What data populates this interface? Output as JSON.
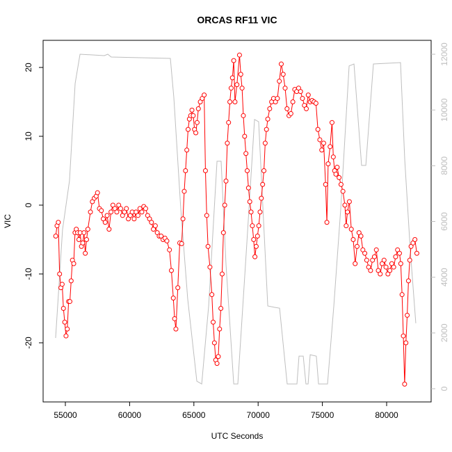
{
  "chart_data": {
    "type": "line",
    "title": "ORCAS RF11 VIC",
    "x_label": "UTC Seconds",
    "y_label": "VIC",
    "xlim": [
      53268,
      83463
    ],
    "xticks": [
      55000,
      60000,
      65000,
      70000,
      75000,
      80000
    ],
    "ylim": [
      -28.59,
      23.94
    ],
    "yticks": [
      -20,
      -10,
      0,
      10,
      20
    ],
    "y2lim": [
      -474,
      12499
    ],
    "y2ticks": [
      0,
      2000,
      4000,
      6000,
      8000,
      10000,
      12000
    ],
    "series": [
      {
        "color": "#ff0000",
        "marker": "circle",
        "axis": "y",
        "x": [
          54250,
          54350,
          54450,
          54550,
          54650,
          54750,
          54850,
          54950,
          55050,
          55150,
          55250,
          55350,
          55450,
          55550,
          55650,
          55750,
          55850,
          55950,
          56050,
          56150,
          56250,
          56350,
          56450,
          56550,
          56650,
          56750,
          56950,
          57100,
          57250,
          57400,
          57500,
          57650,
          57800,
          57950,
          58100,
          58250,
          58400,
          58550,
          58700,
          58850,
          59000,
          59150,
          59300,
          59450,
          59600,
          59750,
          59900,
          60050,
          60200,
          60350,
          60500,
          60650,
          60800,
          60950,
          61100,
          61250,
          61400,
          61550,
          61700,
          61850,
          62000,
          62150,
          62300,
          62450,
          62600,
          62750,
          62900,
          63100,
          63250,
          63400,
          63500,
          63600,
          63750,
          63900,
          64050,
          64150,
          64250,
          64350,
          64450,
          64550,
          64650,
          64750,
          64850,
          64950,
          65050,
          65150,
          65250,
          65350,
          65500,
          65650,
          65800,
          65900,
          66000,
          66100,
          66250,
          66400,
          66500,
          66600,
          66700,
          66800,
          66900,
          67000,
          67100,
          67200,
          67300,
          67400,
          67500,
          67600,
          67700,
          67800,
          67900,
          68000,
          68100,
          68200,
          68350,
          68550,
          68650,
          68750,
          68850,
          68950,
          69050,
          69150,
          69250,
          69350,
          69450,
          69550,
          69650,
          69750,
          69850,
          69950,
          70050,
          70150,
          70250,
          70350,
          70450,
          70550,
          70650,
          70750,
          70900,
          71050,
          71200,
          71350,
          71500,
          71650,
          71800,
          71950,
          72100,
          72250,
          72400,
          72550,
          72700,
          72850,
          73000,
          73150,
          73300,
          73450,
          73600,
          73750,
          73900,
          74050,
          74200,
          74350,
          74500,
          74650,
          74800,
          74950,
          75100,
          75250,
          75350,
          75450,
          75600,
          75750,
          75850,
          75950,
          76050,
          76150,
          76300,
          76450,
          76600,
          76750,
          76850,
          76950,
          77100,
          77250,
          77400,
          77550,
          77700,
          77850,
          78000,
          78150,
          78300,
          78450,
          78600,
          78750,
          78900,
          79050,
          79200,
          79350,
          79500,
          79650,
          79800,
          79950,
          80100,
          80250,
          80400,
          80550,
          80700,
          80850,
          81000,
          81100,
          81200,
          81300,
          81400,
          81500,
          81600,
          81700,
          81800,
          81900,
          82050,
          82200,
          82350
        ],
        "values": [
          -4.5,
          -3,
          -2.5,
          -10,
          -12,
          -11.5,
          -15,
          -17,
          -19,
          -18,
          -14,
          -14,
          -11,
          -8,
          -8.5,
          -4,
          -3.5,
          -4,
          -5,
          -4,
          -6,
          -5.5,
          -4,
          -7,
          -5,
          -3.5,
          -1,
          0.5,
          1,
          1.3,
          1.8,
          -0.5,
          -0.8,
          -2,
          -2.5,
          -1.5,
          -3.5,
          -1,
          0,
          -0.5,
          -1,
          0,
          -0.5,
          -1.5,
          -1,
          -0.5,
          -2,
          -1.5,
          -1,
          -2,
          -1,
          -1.5,
          -0.5,
          -1,
          -0.2,
          -0.5,
          -1.5,
          -2,
          -2.5,
          -3.5,
          -3,
          -4,
          -4.5,
          -4.5,
          -5,
          -4.8,
          -5.2,
          -6.5,
          -9.5,
          -13.5,
          -16.5,
          -18,
          -12,
          -5.5,
          -5.6,
          -2,
          2,
          5,
          8,
          11,
          12.5,
          13,
          13.8,
          13,
          11,
          10.5,
          12,
          14,
          15,
          15.5,
          16,
          5,
          -1.5,
          -6,
          -9,
          -13,
          -17,
          -20,
          -22.5,
          -23,
          -22,
          -18,
          -15,
          -10,
          -4,
          0,
          3.5,
          9,
          12,
          15,
          17,
          18.5,
          21,
          15,
          17.5,
          21.8,
          19,
          17,
          13,
          10,
          7.5,
          5,
          2.5,
          0.5,
          -1,
          -3,
          -5,
          -7.5,
          -6,
          -4.5,
          -3,
          -1,
          1,
          3,
          5,
          9,
          11,
          12.5,
          14,
          15,
          15.5,
          15,
          15.5,
          18,
          20.5,
          19,
          17,
          14,
          13,
          13.3,
          15,
          16.8,
          16.5,
          17,
          16.5,
          15.5,
          14.5,
          14,
          16,
          15,
          15.2,
          15,
          14.8,
          11,
          9.5,
          8,
          9,
          3,
          -2.5,
          6,
          8.5,
          12,
          7,
          5,
          4.5,
          5.5,
          4,
          3,
          2,
          0,
          -3,
          -1,
          0.5,
          -3.5,
          -5,
          -8.5,
          -6,
          -4,
          -4.5,
          -6.5,
          -7,
          -8,
          -9,
          -9.5,
          -8,
          -7.5,
          -6.5,
          -9.5,
          -10,
          -8.5,
          -8,
          -9,
          -10,
          -9.5,
          -8.5,
          -9,
          -7.5,
          -6.5,
          -7,
          -8.5,
          -13,
          -19,
          -26,
          -20,
          -16,
          -11,
          -8,
          -6,
          -5.5,
          -5,
          -7
        ]
      },
      {
        "color": "#bebebe",
        "axis": "y2",
        "x": [
          54240,
          54780,
          55320,
          55760,
          56140,
          58030,
          58300,
          58570,
          63170,
          63440,
          63980,
          64520,
          65230,
          65610,
          66150,
          66800,
          67120,
          67500,
          68100,
          68420,
          69120,
          69720,
          70040,
          70750,
          71290,
          71670,
          72260,
          73020,
          73180,
          73510,
          73720,
          73890,
          74050,
          74530,
          74700,
          75400,
          75890,
          76430,
          77080,
          77460,
          78050,
          78380,
          78970,
          81080,
          81410,
          81840,
          82270
        ],
        "values": [
          1820,
          5710,
          7460,
          10950,
          12000,
          11950,
          12000,
          11900,
          11850,
          10450,
          6460,
          3220,
          270,
          170,
          2970,
          8160,
          8160,
          4470,
          170,
          170,
          5210,
          9660,
          9580,
          2970,
          2920,
          2890,
          170,
          170,
          1170,
          1170,
          170,
          170,
          1220,
          1170,
          170,
          170,
          2970,
          6460,
          11580,
          11650,
          8010,
          8010,
          11650,
          11700,
          8210,
          4970,
          2350
        ]
      }
    ]
  }
}
